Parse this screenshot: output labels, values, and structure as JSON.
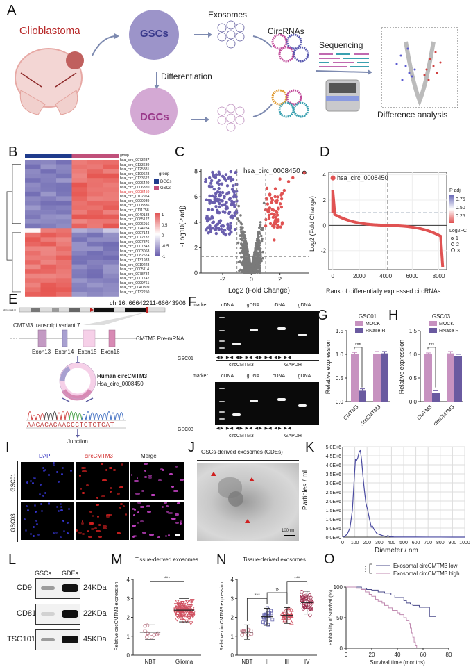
{
  "panelA": {
    "letter": "A",
    "glioblastoma": "Glioblastoma",
    "gscs": "GSCs",
    "dgcs": "DGCs",
    "differentiation": "Differentiation",
    "exosomes": "Exosomes",
    "circrnas": "CircRNAs",
    "sequencing": "Sequencing",
    "difference": "Difference analysis"
  },
  "panelB": {
    "letter": "B",
    "group_label": "group",
    "legend_title": "group",
    "legend_items": [
      {
        "label": "DGCs",
        "color": "#1f3b8c"
      },
      {
        "label": "GSCs",
        "color": "#c0507a"
      }
    ],
    "scale_ticks": [
      "1",
      "0.5",
      "0",
      "-0.5",
      "-1"
    ],
    "genes": [
      "hsa_circ_0073237",
      "hsa_circ_0133639",
      "hsa_circ_0125881",
      "hsa_circ_0109623",
      "hsa_circ_0133622",
      "hsa_circ_0006420",
      "hsa_circ_0006370",
      "hsa_circ_0008450",
      "hsa_circ_0102954",
      "hsa_circ_0000939",
      "hsa_circ_0008336",
      "hsa_circ_0111758",
      "hsa_circ_0040188",
      "hsa_circ_0085127",
      "hsa_circ_0006916",
      "hsa_circ_0124284",
      "hsa_circ_0097143",
      "hsa_circ_0072732",
      "hsa_circ_0097876",
      "hsa_circ_0007843",
      "hsa_circ_0003068",
      "hsa_circ_0082574",
      "hsa_circ_0131933",
      "hsa_circ_0019223",
      "hsa_circ_0005114",
      "hsa_circ_0078784",
      "hsa_circ_0001742",
      "hsa_circ_0099761",
      "hsa_circ_0040809",
      "hsa_circ_0132250"
    ],
    "highlight": "hsa_circ_0008450"
  },
  "chart_data": [
    {
      "id": "C",
      "type": "scatter",
      "title": "",
      "xlabel": "Log2 (Fold Change)",
      "ylabel": "-Log10(P.adj)",
      "xlim": [
        -3.5,
        4
      ],
      "ylim": [
        0,
        8.2
      ],
      "xticks": [
        "-2",
        "0",
        "2"
      ],
      "yticks": [
        "0",
        "2",
        "4",
        "6",
        "8"
      ],
      "annotation": "hsa_circ_0008450",
      "annotation_point": [
        3.7,
        7.9
      ],
      "thresholds": {
        "x": [
          -1,
          1
        ],
        "y": 1.3
      },
      "colors": {
        "down": "#6a5fae",
        "ns": "#7a7a7a",
        "up": "#e05252"
      }
    },
    {
      "id": "D",
      "type": "scatter",
      "xlabel": "Rank of differentially expressed circRNAs",
      "ylabel": "Log2 (Fold Change)",
      "xlim": [
        -300,
        8600
      ],
      "ylim": [
        -3.5,
        4.2
      ],
      "xticks": [
        "0",
        "2000",
        "4000",
        "6000",
        "8000"
      ],
      "yticks": [
        "-2",
        "0",
        "2",
        "4"
      ],
      "annotation": "hsa_circ_0008450",
      "legend_padj_title": "P adj",
      "legend_padj_ticks": [
        "0.75",
        "0.50",
        "0.25"
      ],
      "legend_fc_title": "Log2FC",
      "legend_fc_items": [
        "1",
        "2",
        "3"
      ]
    },
    {
      "id": "G",
      "type": "bar",
      "title": "GSC01",
      "categories": [
        "CMTM3",
        "circCMTM3"
      ],
      "series": [
        {
          "name": "MOCK",
          "values": [
            1.0,
            1.01
          ],
          "errors": [
            0.04,
            0.05
          ],
          "color": "#c792c0"
        },
        {
          "name": "RNase R",
          "values": [
            0.23,
            1.02
          ],
          "errors": [
            0.04,
            0.04
          ],
          "color": "#6a5aa0"
        }
      ],
      "ylabel": "Relative expression",
      "ylim": [
        0,
        1.5
      ],
      "yticks": [
        "0.0",
        "0.5",
        "1.0",
        "1.5"
      ],
      "significance": "***"
    },
    {
      "id": "H",
      "type": "bar",
      "title": "GSC03",
      "categories": [
        "CMTM3",
        "circCMTM3"
      ],
      "series": [
        {
          "name": "MOCK",
          "values": [
            1.0,
            1.02
          ],
          "errors": [
            0.03,
            0.04
          ],
          "color": "#c792c0"
        },
        {
          "name": "RNase R",
          "values": [
            0.19,
            0.96
          ],
          "errors": [
            0.04,
            0.04
          ],
          "color": "#6a5aa0"
        }
      ],
      "ylabel": "Relative expression",
      "ylim": [
        0,
        1.5
      ],
      "yticks": [
        "0.0",
        "0.5",
        "1.0",
        "1.5"
      ],
      "significance": "***"
    },
    {
      "id": "K",
      "type": "line",
      "xlabel": "Diameter / nm",
      "ylabel": "Particles / ml",
      "xlim": [
        0,
        1000
      ],
      "ylim": [
        0,
        5000000
      ],
      "xticks": [
        "0",
        "100",
        "200",
        "300",
        "400",
        "500",
        "600",
        "700",
        "800",
        "900",
        "1000"
      ],
      "yticks": [
        "0.0E+0",
        "5.0E+5",
        "1.0E+6",
        "1.5E+6",
        "2.0E+6",
        "2.5E+6",
        "3.0E+6",
        "3.5E+6",
        "4.0E+6",
        "4.5E+6",
        "5.0E+6"
      ],
      "x": [
        0,
        20,
        40,
        60,
        80,
        95,
        105,
        115,
        125,
        135,
        145,
        155,
        165,
        175,
        190,
        205,
        220,
        235,
        245,
        255,
        265,
        280,
        300,
        330,
        360,
        370,
        390,
        420,
        500,
        600,
        700,
        800,
        900,
        1000
      ],
      "y": [
        0,
        50000,
        200000,
        500000,
        1500000,
        3200000,
        4300000,
        4250000,
        4400000,
        4700000,
        4800000,
        4300000,
        3500000,
        2800000,
        1900000,
        1500000,
        1000000,
        550000,
        600000,
        450000,
        350000,
        200000,
        150000,
        80000,
        30000,
        90000,
        20000,
        10000,
        5000,
        5000,
        3000,
        2000,
        1000,
        0
      ],
      "color": "#4a4aa0"
    },
    {
      "id": "M",
      "type": "scatter",
      "title": "Tissue-derived exosomes",
      "categories": [
        "NBT",
        "Glioma"
      ],
      "means": [
        1.22,
        2.38
      ],
      "sds": [
        0.38,
        0.62
      ],
      "ylabel": "Relative circCMTM3 expression",
      "ylim": [
        0,
        4
      ],
      "yticks": [
        "0",
        "1",
        "2",
        "3",
        "4"
      ],
      "significance": [
        "***"
      ]
    },
    {
      "id": "N",
      "type": "scatter",
      "title": "Tissue-derived exosomes",
      "categories": [
        "NBT",
        "II",
        "III",
        "IV"
      ],
      "means": [
        1.22,
        2.03,
        2.1,
        2.78
      ],
      "sds": [
        0.38,
        0.45,
        0.42,
        0.6
      ],
      "ylabel": "Relative circCMTM3 expression",
      "ylim": [
        0,
        4
      ],
      "yticks": [
        "0",
        "1",
        "2",
        "3",
        "4"
      ],
      "significance": [
        "***",
        "ns",
        "***"
      ]
    },
    {
      "id": "O",
      "type": "line",
      "xlabel": "Survival time (months)",
      "ylabel": "Probability of Survival (%)",
      "xlim": [
        0,
        80
      ],
      "ylim": [
        0,
        100
      ],
      "xticks": [
        "0",
        "20",
        "40",
        "60",
        "80"
      ],
      "yticks": [
        "0",
        "50",
        "100"
      ],
      "significance": "***",
      "series": [
        {
          "name": "Exosomal circCMTM3 low",
          "color": "#4a4a8a",
          "x": [
            0,
            10,
            12,
            16,
            20,
            25,
            30,
            35,
            38,
            45,
            47,
            50,
            52,
            57,
            62,
            65,
            68,
            70,
            70
          ],
          "y": [
            100,
            100,
            98,
            96,
            95,
            92,
            90,
            87,
            83,
            78,
            74,
            72,
            70,
            67,
            67,
            52,
            52,
            52,
            18
          ]
        },
        {
          "name": "Exosomal circCMTM3 high",
          "color": "#c08ab0",
          "x": [
            0,
            8,
            12,
            15,
            18,
            20,
            23,
            25,
            28,
            30,
            33,
            36,
            40,
            42,
            45,
            47,
            49,
            50,
            51,
            52,
            53,
            54,
            55
          ],
          "y": [
            100,
            98,
            96,
            92,
            88,
            85,
            80,
            77,
            74,
            70,
            66,
            62,
            58,
            55,
            50,
            45,
            40,
            33,
            25,
            18,
            10,
            4,
            0
          ]
        }
      ]
    }
  ],
  "panelE": {
    "letter": "E",
    "locus": "chr16: 66642211-66643906",
    "chrom_label": "chr16 (q22.1)",
    "transcript": "CMTM3 transcript variant 7",
    "premrna": "CMTM3 Pre-mRNA",
    "exons": [
      "Exon13",
      "Exon14",
      "Exon15",
      "Exon16"
    ],
    "circ_title": "Human circCMTM3",
    "circ_id": "Hsa_circ_0008450",
    "sequence": "AAGACAGAAGGGTCTCTCAT",
    "junction": "Junction"
  },
  "panelF": {
    "letter": "F",
    "marker": "marker",
    "lanes": [
      "cDNA",
      "gDNA",
      "cDNA",
      "gDNA"
    ],
    "rows": [
      {
        "cell": "GSC01"
      },
      {
        "cell": "GSC03"
      }
    ],
    "genes": [
      "circCMTM3",
      "GAPDH"
    ]
  },
  "panelI": {
    "letter": "I",
    "cols": [
      "DAPI",
      "circCMTM3",
      "Merge"
    ],
    "rows": [
      "GSC01",
      "GSC03"
    ]
  },
  "panelJ": {
    "letter": "J",
    "title": "GSCs-derived exosomes (GDEs)",
    "scale": "100nm"
  },
  "panelL": {
    "letter": "L",
    "cols": [
      "GSCs",
      "GDEs"
    ],
    "rows": [
      {
        "protein": "CD9",
        "size": "24KDa"
      },
      {
        "protein": "CD81",
        "size": "22KDa"
      },
      {
        "protein": "TSG101",
        "size": "45KDa"
      }
    ]
  },
  "letters": {
    "C": "C",
    "D": "D",
    "G": "G",
    "H": "H",
    "K": "K",
    "M": "M",
    "N": "N",
    "O": "O"
  }
}
